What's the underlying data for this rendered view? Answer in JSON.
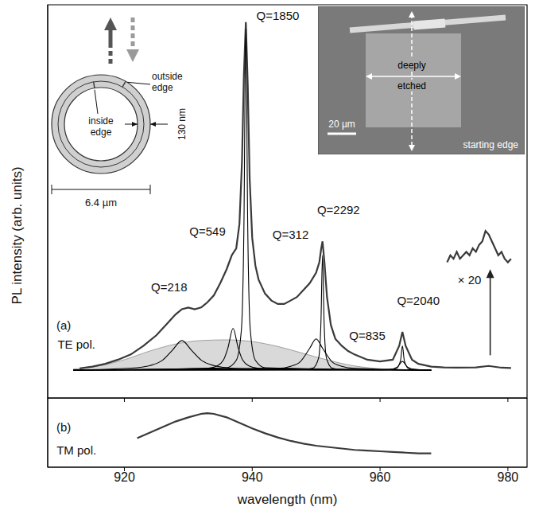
{
  "chart_data": [
    {
      "type": "line",
      "ylabel": "PL intensity (arb. units)",
      "xlim": [
        908,
        983
      ],
      "xticks": [
        920,
        940,
        960,
        980
      ],
      "ylim": [
        -0.08,
        1.05
      ],
      "tick_labels": false,
      "series": [
        {
          "type": "area",
          "color": "#d9d9d9",
          "x": [
            912,
            916,
            920,
            924,
            928,
            932,
            936,
            940,
            944,
            948,
            952,
            956,
            960,
            964,
            968
          ],
          "values": [
            0.003,
            0.012,
            0.03,
            0.055,
            0.075,
            0.085,
            0.087,
            0.082,
            0.068,
            0.048,
            0.028,
            0.012,
            0.004,
            0.001,
            0
          ]
        },
        {
          "type": "line",
          "color": "#3a3a3a",
          "line_style": "solid",
          "x": [
            913,
            915,
            917,
            919,
            921,
            923,
            925,
            926.5,
            928,
            929,
            930,
            931,
            932,
            933,
            934,
            935,
            936,
            936.8,
            937.5,
            938,
            938.4,
            938.7,
            939,
            939.3,
            939.6,
            940,
            940.5,
            941,
            942,
            943,
            944,
            945,
            946,
            947,
            948,
            949,
            950,
            950.5,
            950.8,
            951,
            951.3,
            951.7,
            952.3,
            953,
            954,
            955,
            956,
            958,
            960,
            962,
            963,
            963.5,
            964,
            965,
            966,
            968,
            970,
            972,
            975,
            977,
            979,
            980.5
          ],
          "values": [
            0.005,
            0.01,
            0.018,
            0.03,
            0.045,
            0.07,
            0.1,
            0.13,
            0.16,
            0.175,
            0.18,
            0.175,
            0.18,
            0.195,
            0.215,
            0.25,
            0.29,
            0.33,
            0.35,
            0.42,
            0.6,
            0.85,
            1,
            0.82,
            0.55,
            0.38,
            0.3,
            0.26,
            0.22,
            0.2,
            0.19,
            0.19,
            0.2,
            0.21,
            0.23,
            0.25,
            0.28,
            0.31,
            0.35,
            0.37,
            0.31,
            0.21,
            0.13,
            0.09,
            0.07,
            0.055,
            0.045,
            0.03,
            0.025,
            0.03,
            0.07,
            0.11,
            0.07,
            0.03,
            0.018,
            0.01,
            0.008,
            0.007,
            0.008,
            0.012,
            0.007,
            0.006
          ]
        },
        {
          "type": "line",
          "color": "#3a3a3a",
          "line_style": "solid",
          "x": [
            970.5,
            971,
            971.5,
            972,
            972.5,
            973,
            973.5,
            974,
            974.5,
            975,
            975.5,
            976,
            976.5,
            977,
            977.5,
            978,
            978.5,
            979,
            979.5,
            980,
            980.5
          ],
          "values": [
            0.31,
            0.33,
            0.32,
            0.34,
            0.32,
            0.33,
            0.34,
            0.33,
            0.35,
            0.34,
            0.36,
            0.37,
            0.4,
            0.39,
            0.37,
            0.35,
            0.33,
            0.34,
            0.32,
            0.31,
            0.32
          ]
        },
        {
          "type": "line",
          "color": "#000000",
          "line_style": "smooth",
          "x": [
            912,
            919,
            922,
            924,
            926,
            927.5,
            929,
            930.5,
            932,
            934,
            936,
            939,
            950,
            968
          ],
          "values": [
            0,
            0.004,
            0.007,
            0.013,
            0.029,
            0.057,
            0.085,
            0.057,
            0.029,
            0.013,
            0.007,
            0.004,
            0.001,
            0
          ]
        },
        {
          "type": "line",
          "color": "#000000",
          "line_style": "smooth",
          "x": [
            912,
            933,
            934.5,
            935.5,
            936.2,
            937,
            937.8,
            938.5,
            939.5,
            941,
            968
          ],
          "values": [
            0,
            0.005,
            0.012,
            0.029,
            0.064,
            0.12,
            0.064,
            0.029,
            0.012,
            0.005,
            0
          ]
        },
        {
          "type": "line",
          "color": "#000000",
          "line_style": "smooth",
          "x": [
            912,
            936,
            937.5,
            938.3,
            938.7,
            939,
            939.3,
            939.7,
            940.5,
            942,
            968
          ],
          "values": [
            0,
            0.007,
            0.028,
            0.115,
            0.41,
            0.98,
            0.41,
            0.115,
            0.028,
            0.007,
            0
          ]
        },
        {
          "type": "line",
          "color": "#000000",
          "line_style": "smooth",
          "x": [
            912,
            944,
            946,
            947.5,
            949,
            950,
            951,
            952.5,
            954,
            956,
            968
          ],
          "values": [
            0,
            0.005,
            0.011,
            0.024,
            0.063,
            0.09,
            0.063,
            0.024,
            0.011,
            0.005,
            0
          ]
        },
        {
          "type": "line",
          "color": "#000000",
          "line_style": "smooth",
          "x": [
            912,
            948,
            949.5,
            950.4,
            950.75,
            951,
            951.25,
            951.6,
            952.5,
            954,
            968
          ],
          "values": [
            0,
            0.002,
            0.006,
            0.036,
            0.136,
            0.33,
            0.136,
            0.036,
            0.006,
            0.002,
            0
          ]
        },
        {
          "type": "line",
          "color": "#000000",
          "line_style": "smooth",
          "x": [
            912,
            960,
            961.5,
            962.7,
            963.5,
            964.3,
            965.5,
            967,
            968
          ],
          "values": [
            0,
            0.001,
            0.002,
            0.009,
            0.025,
            0.009,
            0.002,
            0.001,
            0
          ]
        },
        {
          "type": "line",
          "color": "#000000",
          "line_style": "smooth",
          "x": [
            912,
            961,
            962.5,
            963.2,
            963.5,
            963.8,
            964.5,
            966,
            968
          ],
          "values": [
            0,
            0.001,
            0.004,
            0.027,
            0.07,
            0.027,
            0.004,
            0.001,
            0
          ]
        }
      ],
      "annotations": [
        {
          "text": "Q=1850",
          "x": 944,
          "y": 1.02
        },
        {
          "text": "Q=549",
          "x": 933,
          "y": 0.4
        },
        {
          "text": "Q=218",
          "x": 927,
          "y": 0.24
        },
        {
          "text": "Q=2292",
          "x": 953.5,
          "y": 0.46
        },
        {
          "text": "Q=312",
          "x": 946,
          "y": 0.39
        },
        {
          "text": "Q=2040",
          "x": 966,
          "y": 0.2
        },
        {
          "text": "Q=835",
          "x": 958,
          "y": 0.1
        },
        {
          "text": "× 20",
          "x": 974,
          "y": 0.26,
          "marker": "arrow"
        },
        {
          "text": "(a)",
          "x": 910.5,
          "y": 0.13
        },
        {
          "text": "TE pol.",
          "x": 912.5,
          "y": 0.075
        }
      ]
    },
    {
      "type": "line",
      "xlabel": "wavelength (nm)",
      "xlim": [
        908,
        983
      ],
      "xticks": [
        920,
        940,
        960,
        980
      ],
      "ylim": [
        0,
        1
      ],
      "tick_labels": "x",
      "series": [
        {
          "type": "line",
          "color": "#3a3a3a",
          "line_style": "solid",
          "x": [
            922,
            924,
            926,
            928,
            930,
            932,
            933,
            934,
            936,
            938,
            940,
            942,
            944,
            946,
            948,
            950,
            952,
            954,
            956,
            958,
            960,
            962,
            964,
            966,
            968
          ],
          "values": [
            0.42,
            0.5,
            0.58,
            0.66,
            0.72,
            0.77,
            0.78,
            0.77,
            0.72,
            0.64,
            0.56,
            0.49,
            0.43,
            0.38,
            0.34,
            0.31,
            0.29,
            0.27,
            0.25,
            0.24,
            0.23,
            0.22,
            0.21,
            0.2,
            0.2
          ]
        }
      ],
      "annotations": [
        {
          "text": "(b)",
          "x": 910.5,
          "y": 0.58
        },
        {
          "text": "TM pol.",
          "x": 912.5,
          "y": 0.25
        }
      ]
    }
  ],
  "insets": {
    "ring_diagram": {
      "outside_edge": "outside edge",
      "inside_edge": "inside edge",
      "wall_width": "130 nm",
      "diameter": "6.4 µm"
    },
    "sem_image": {
      "etched_region": "deeply etched",
      "scale_bar": "20 µm",
      "edge": "starting edge"
    }
  }
}
